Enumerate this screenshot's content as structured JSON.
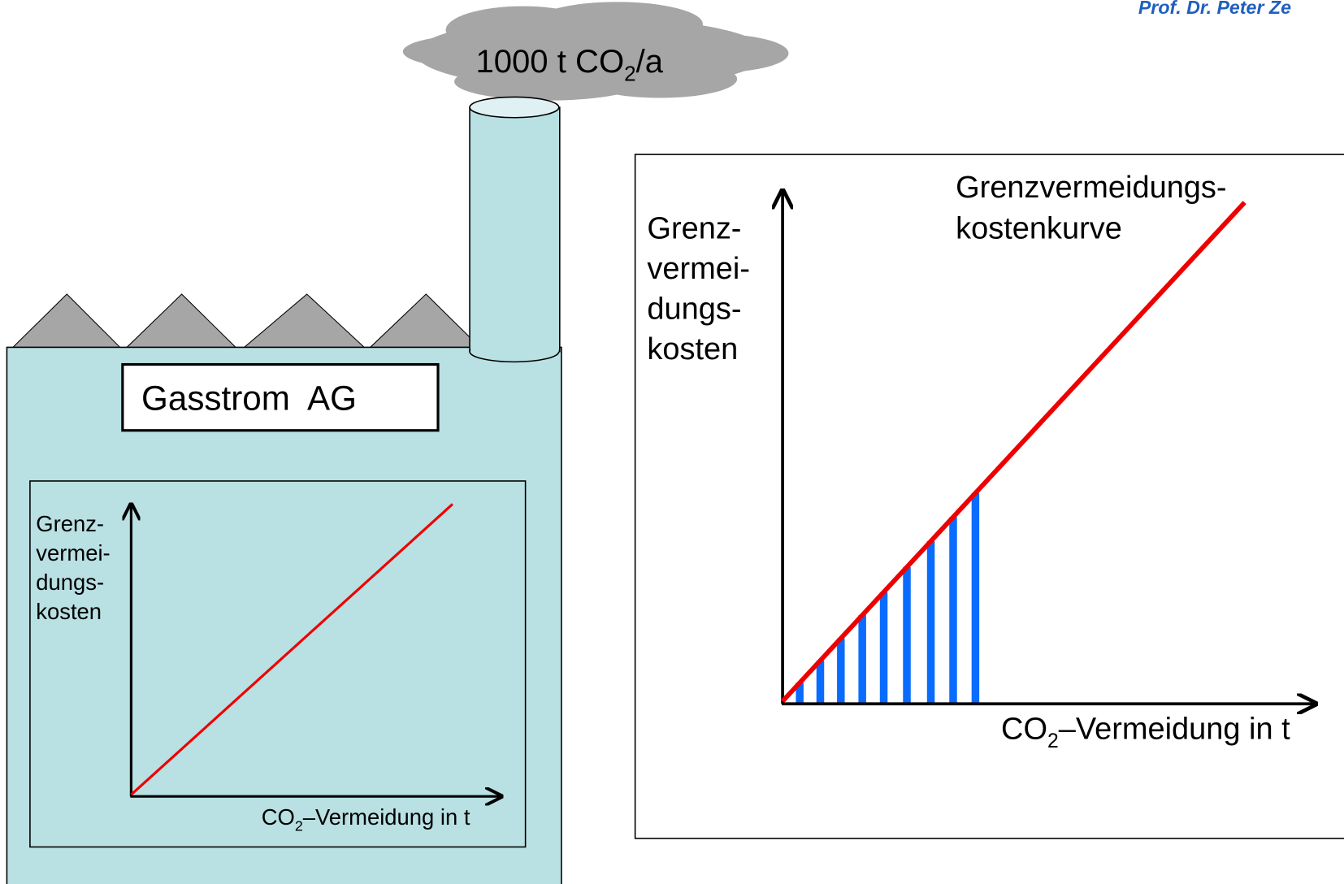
{
  "header": {
    "author": "Prof. Dr. Peter Ze"
  },
  "cloud": {
    "text": "1000 t CO",
    "subscript": "2",
    "suffix": "/a"
  },
  "company": {
    "name": "Gasstrom  AG"
  },
  "small_chart": {
    "y_label": [
      "Grenz-",
      "vermei-",
      "dungs-",
      "kosten"
    ],
    "x_label": {
      "text": "CO",
      "subscript": "2",
      "suffix": "–Vermeidung in t"
    }
  },
  "large_chart": {
    "y_label": [
      "Grenz-",
      "vermei-",
      "dungs-",
      "kosten"
    ],
    "curve_label": [
      "Grenzvermeidungs-",
      "kostenkurve"
    ],
    "x_label": {
      "text": "CO",
      "subscript": "2",
      "suffix": "–Vermeidung in t"
    }
  }
}
